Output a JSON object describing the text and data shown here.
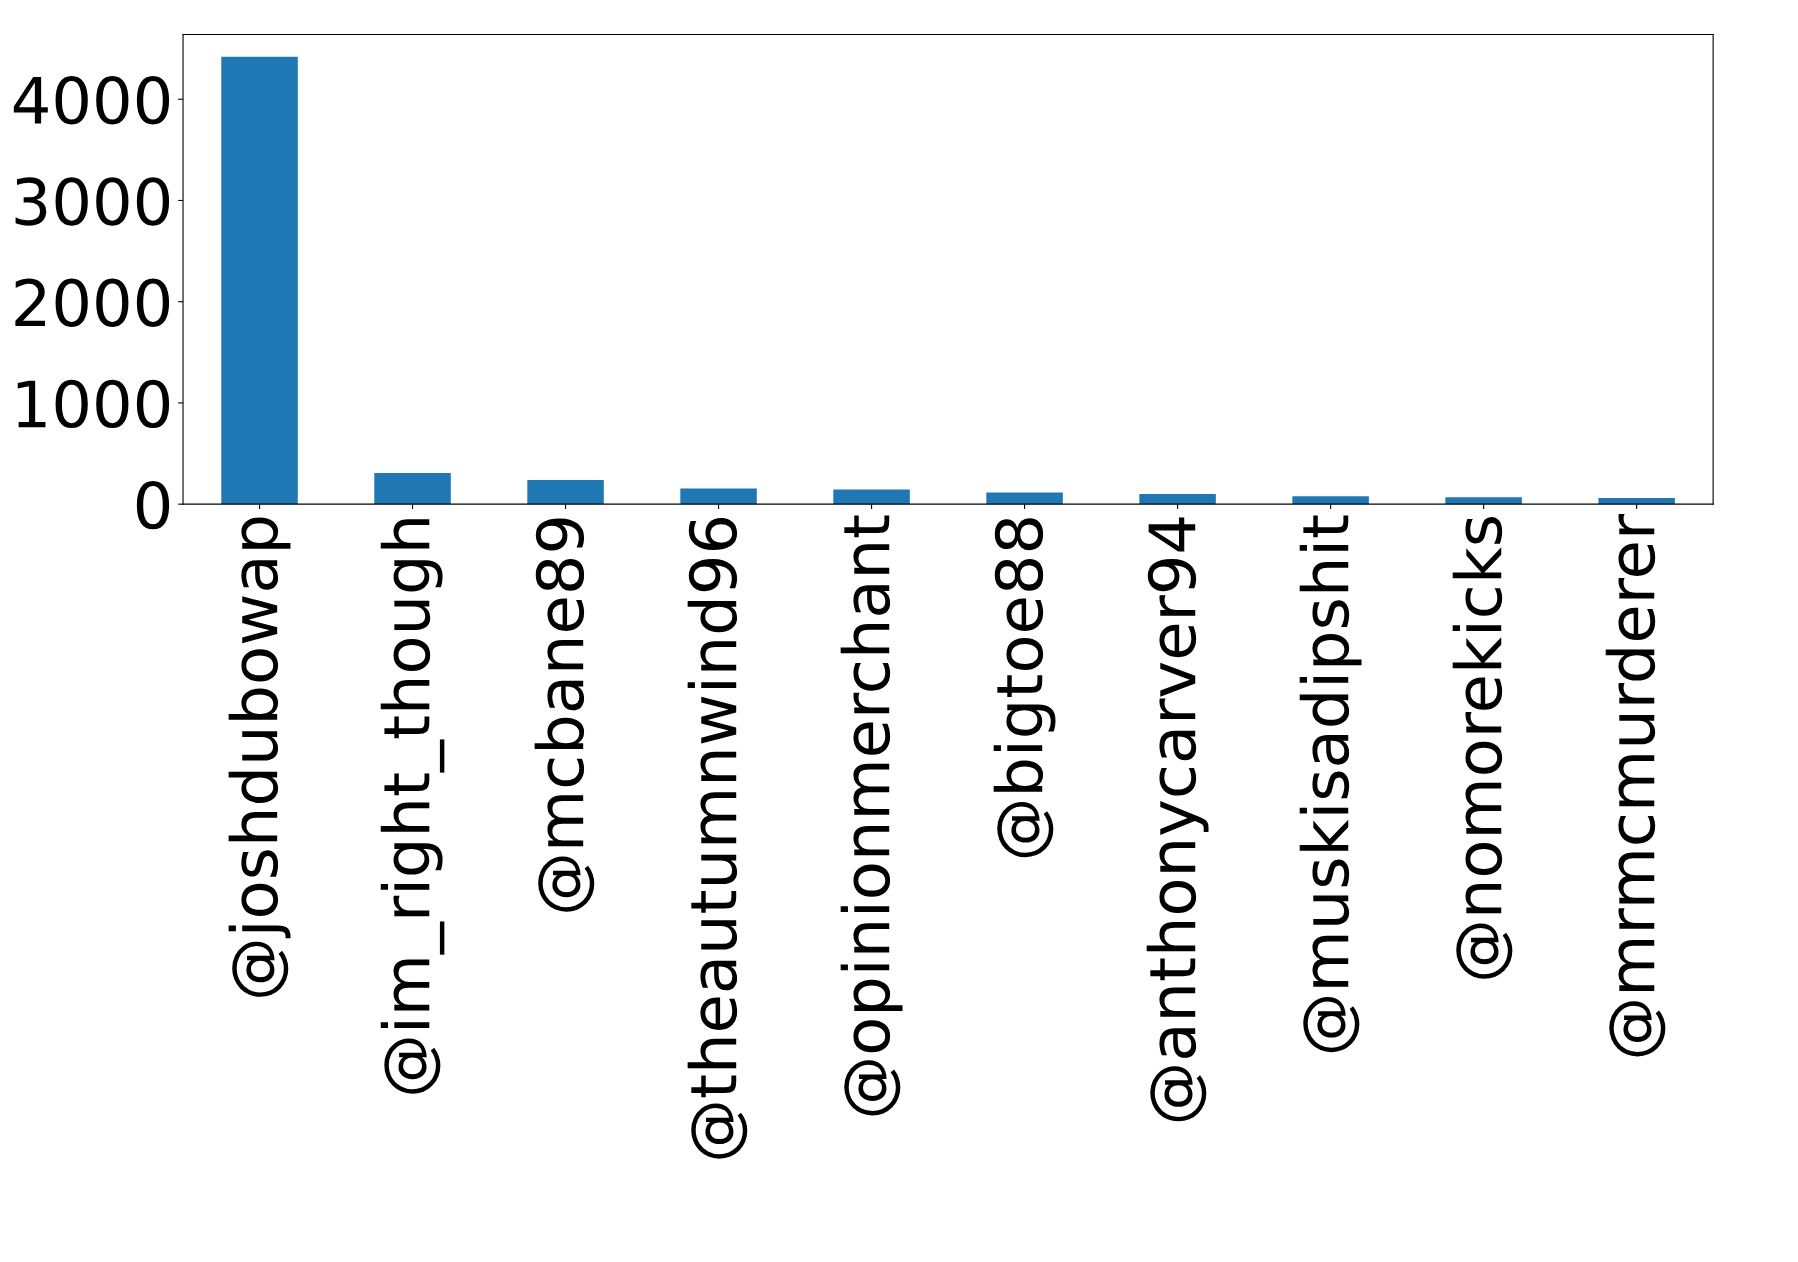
{
  "chart_data": {
    "type": "bar",
    "categories": [
      "@joshdubowap",
      "@im_right_though",
      "@mcbane89",
      "@theautumnwind96",
      "@opinionmerchant",
      "@bigtoe88",
      "@anthonycarver94",
      "@muskisadipshit",
      "@nomorekicks",
      "@mrmcmurderer"
    ],
    "values": [
      4420,
      308,
      238,
      154,
      146,
      115,
      100,
      77,
      69,
      62
    ],
    "color": "#1f77b4",
    "ylim": [
      0,
      4640
    ],
    "yticks": [
      0,
      1000,
      2000,
      3000,
      4000
    ],
    "grid": false,
    "legend": false
  }
}
